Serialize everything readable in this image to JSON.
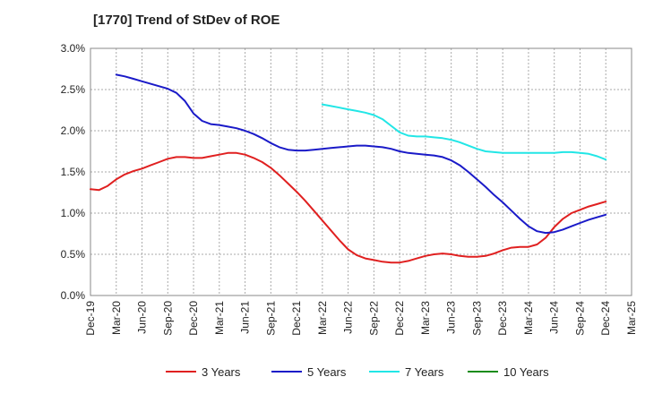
{
  "chart_data": {
    "type": "line",
    "title": "[1770]  Trend of StDev of ROE",
    "xlabel": "",
    "ylabel": "",
    "x_tick_labels": [
      "Dec-19",
      "Mar-20",
      "Jun-20",
      "Sep-20",
      "Dec-20",
      "Mar-21",
      "Jun-21",
      "Sep-21",
      "Dec-21",
      "Mar-22",
      "Jun-22",
      "Sep-22",
      "Dec-22",
      "Mar-23",
      "Jun-23",
      "Sep-23",
      "Dec-23",
      "Mar-24",
      "Jun-24",
      "Sep-24",
      "Dec-24",
      "Mar-25"
    ],
    "y_tick_labels": [
      "0.0%",
      "0.5%",
      "1.0%",
      "1.5%",
      "2.0%",
      "2.5%",
      "3.0%"
    ],
    "ylim": [
      0,
      3.0
    ],
    "y_unit": "%",
    "grid": true,
    "legend_position": "bottom",
    "series": [
      {
        "name": "3 Years",
        "color": "#e02020",
        "x": [
          "Dec-19",
          "Jan-20",
          "Feb-20",
          "Mar-20",
          "Apr-20",
          "May-20",
          "Jun-20",
          "Jul-20",
          "Aug-20",
          "Sep-20",
          "Oct-20",
          "Nov-20",
          "Dec-20",
          "Jan-21",
          "Feb-21",
          "Mar-21",
          "Apr-21",
          "May-21",
          "Jun-21",
          "Jul-21",
          "Aug-21",
          "Sep-21",
          "Oct-21",
          "Nov-21",
          "Dec-21",
          "Jan-22",
          "Feb-22",
          "Mar-22",
          "Apr-22",
          "May-22",
          "Jun-22",
          "Jul-22",
          "Aug-22",
          "Sep-22",
          "Oct-22",
          "Nov-22",
          "Dec-22",
          "Jan-23",
          "Feb-23",
          "Mar-23",
          "Apr-23",
          "May-23",
          "Jun-23",
          "Jul-23",
          "Aug-23",
          "Sep-23",
          "Oct-23",
          "Nov-23",
          "Dec-23",
          "Jan-24",
          "Feb-24",
          "Mar-24",
          "Apr-24",
          "May-24",
          "Jun-24",
          "Jul-24",
          "Aug-24",
          "Sep-24",
          "Oct-24",
          "Nov-24",
          "Dec-24"
        ],
        "values": [
          1.29,
          1.28,
          1.33,
          1.41,
          1.47,
          1.51,
          1.54,
          1.58,
          1.62,
          1.66,
          1.68,
          1.68,
          1.67,
          1.67,
          1.69,
          1.71,
          1.73,
          1.73,
          1.71,
          1.67,
          1.62,
          1.55,
          1.46,
          1.36,
          1.26,
          1.15,
          1.03,
          0.91,
          0.79,
          0.67,
          0.56,
          0.49,
          0.45,
          0.43,
          0.41,
          0.4,
          0.4,
          0.42,
          0.45,
          0.48,
          0.5,
          0.51,
          0.5,
          0.48,
          0.47,
          0.47,
          0.48,
          0.51,
          0.55,
          0.58,
          0.59,
          0.59,
          0.62,
          0.7,
          0.83,
          0.93,
          1.0,
          1.04,
          1.08,
          1.11,
          1.14
        ]
      },
      {
        "name": "5 Years",
        "color": "#1a1ac8",
        "x": [
          "Mar-20",
          "Apr-20",
          "May-20",
          "Jun-20",
          "Jul-20",
          "Aug-20",
          "Sep-20",
          "Oct-20",
          "Nov-20",
          "Dec-20",
          "Jan-21",
          "Feb-21",
          "Mar-21",
          "Apr-21",
          "May-21",
          "Jun-21",
          "Jul-21",
          "Aug-21",
          "Sep-21",
          "Oct-21",
          "Nov-21",
          "Dec-21",
          "Jan-22",
          "Feb-22",
          "Mar-22",
          "Apr-22",
          "May-22",
          "Jun-22",
          "Jul-22",
          "Aug-22",
          "Sep-22",
          "Oct-22",
          "Nov-22",
          "Dec-22",
          "Jan-23",
          "Feb-23",
          "Mar-23",
          "Apr-23",
          "May-23",
          "Jun-23",
          "Jul-23",
          "Aug-23",
          "Sep-23",
          "Oct-23",
          "Nov-23",
          "Dec-23",
          "Jan-24",
          "Feb-24",
          "Mar-24",
          "Apr-24",
          "May-24",
          "Jun-24",
          "Jul-24",
          "Aug-24",
          "Sep-24",
          "Oct-24",
          "Nov-24",
          "Dec-24"
        ],
        "values": [
          2.68,
          2.66,
          2.63,
          2.6,
          2.57,
          2.54,
          2.51,
          2.46,
          2.36,
          2.21,
          2.12,
          2.08,
          2.07,
          2.05,
          2.03,
          2.0,
          1.96,
          1.91,
          1.85,
          1.8,
          1.77,
          1.76,
          1.76,
          1.77,
          1.78,
          1.79,
          1.8,
          1.81,
          1.82,
          1.82,
          1.81,
          1.8,
          1.78,
          1.75,
          1.73,
          1.72,
          1.71,
          1.7,
          1.68,
          1.64,
          1.58,
          1.5,
          1.41,
          1.32,
          1.22,
          1.13,
          1.03,
          0.93,
          0.84,
          0.78,
          0.76,
          0.77,
          0.8,
          0.84,
          0.88,
          0.92,
          0.95,
          0.98
        ]
      },
      {
        "name": "7 Years",
        "color": "#22e6e6",
        "x": [
          "Mar-22",
          "Apr-22",
          "May-22",
          "Jun-22",
          "Jul-22",
          "Aug-22",
          "Sep-22",
          "Oct-22",
          "Nov-22",
          "Dec-22",
          "Jan-23",
          "Feb-23",
          "Mar-23",
          "Apr-23",
          "May-23",
          "Jun-23",
          "Jul-23",
          "Aug-23",
          "Sep-23",
          "Oct-23",
          "Nov-23",
          "Dec-23",
          "Jan-24",
          "Feb-24",
          "Mar-24",
          "Apr-24",
          "May-24",
          "Jun-24",
          "Jul-24",
          "Aug-24",
          "Sep-24",
          "Oct-24",
          "Nov-24",
          "Dec-24"
        ],
        "values": [
          2.32,
          2.3,
          2.28,
          2.26,
          2.24,
          2.22,
          2.19,
          2.14,
          2.06,
          1.98,
          1.94,
          1.93,
          1.93,
          1.92,
          1.91,
          1.89,
          1.86,
          1.82,
          1.78,
          1.75,
          1.74,
          1.73,
          1.73,
          1.73,
          1.73,
          1.73,
          1.73,
          1.73,
          1.74,
          1.74,
          1.73,
          1.72,
          1.69,
          1.65
        ]
      },
      {
        "name": "10 Years",
        "color": "#1a8c1a",
        "x": [],
        "values": []
      }
    ]
  }
}
